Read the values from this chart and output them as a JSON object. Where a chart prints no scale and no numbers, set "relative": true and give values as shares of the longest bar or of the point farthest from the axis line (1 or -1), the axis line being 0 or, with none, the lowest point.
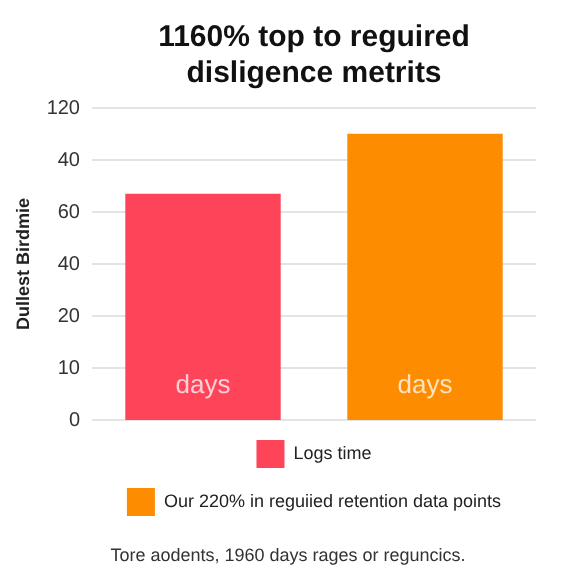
{
  "chart_data": {
    "type": "bar",
    "title": "1160% top to reguired\ndisligence metrits",
    "ylabel": "Dullest Birdmie",
    "categories": [
      null
    ],
    "relative": true,
    "series": [
      {
        "name": "Logs time",
        "color": "#fd4459",
        "values": [
          0.79
        ]
      },
      {
        "name": "Our 220% in reguiied retention data points",
        "color": "#fd8c00",
        "values": [
          1
        ]
      }
    ],
    "grid": "y",
    "legend": "bottom",
    "annotations": [
      "120",
      "40",
      "60",
      "40",
      "20",
      "10",
      "0",
      "days",
      "days",
      "Tore aodents, 1960 days rages or reguncics."
    ]
  }
}
